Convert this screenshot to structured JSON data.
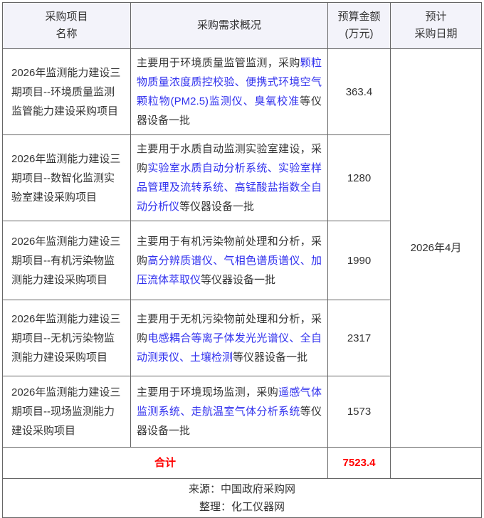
{
  "header": {
    "col_project_name": "采购项目\n名称",
    "col_overview": "采购需求概况",
    "col_budget": "预算金额\n(万元)",
    "col_date": "预计\n采购日期"
  },
  "rows": [
    {
      "name": "2026年监测能力建设三期项目--环境质量监测监管能力建设采购项目",
      "overview": [
        {
          "text": "主要用于环境质量监管监测，采购",
          "highlight": false
        },
        {
          "text": "颗粒物质量浓度质控校验、便携式环境空气颗粒物(PM2.5)监测仪、臭氧校准",
          "highlight": true
        },
        {
          "text": "等仪器设备一批",
          "highlight": false
        }
      ],
      "budget": "363.4"
    },
    {
      "name": "2026年监测能力建设三期项目--数智化监测实验室建设采购项目",
      "overview": [
        {
          "text": "主要用于水质自动监测实验室建设，采购",
          "highlight": false
        },
        {
          "text": "实验室水质自动分析系统、实验室样品管理及流转系统、高锰酸盐指数全自动分析仪",
          "highlight": true
        },
        {
          "text": "等仪器设备一批",
          "highlight": false
        }
      ],
      "budget": "1280"
    },
    {
      "name": "2026年监测能力建设三期项目--有机污染物监测能力建设采购项目",
      "overview": [
        {
          "text": "主要用于有机污染物前处理和分析，采购",
          "highlight": false
        },
        {
          "text": "高分辨质谱仪、气相色谱质谱仪、加压流体萃取仪",
          "highlight": true
        },
        {
          "text": "等仪器设备一批",
          "highlight": false
        }
      ],
      "budget": "1990"
    },
    {
      "name": "2026年监测能力建设三期项目--无机污染物监测能力建设采购项目",
      "overview": [
        {
          "text": "主要用于无机污染物前处理和分析，采购",
          "highlight": false
        },
        {
          "text": "电感耦合等离子体发光光谱仪、全自动测汞仪、土壤检测",
          "highlight": true
        },
        {
          "text": "等仪器设备一批",
          "highlight": false
        }
      ],
      "budget": "2317"
    },
    {
      "name": "2026年监测能力建设三期项目--现场监测能力建设采购项目",
      "overview": [
        {
          "text": "主要用于环境现场监测，采购",
          "highlight": false
        },
        {
          "text": "遥感气体监测系统、走航温室气体分析系统",
          "highlight": true
        },
        {
          "text": "等仪器设备一批",
          "highlight": false
        }
      ],
      "budget": "1573"
    }
  ],
  "schedule": {
    "date": "2026年4月"
  },
  "total": {
    "label": "合计",
    "value": "7523.4"
  },
  "footer": {
    "source": "来源：中国政府采购网",
    "compiled_by": "整理：化工仪器网"
  },
  "colors": {
    "highlight_blue": "#3030ee",
    "total_red": "#ff0000",
    "header_bg": "#f3f3fa",
    "border": "#666666",
    "text": "#333333"
  }
}
